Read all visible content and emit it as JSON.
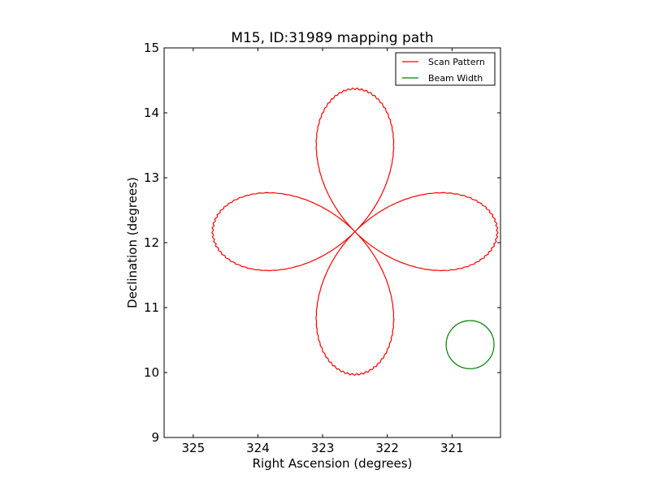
{
  "chart_data": {
    "type": "line",
    "title": "M15, ID:31989 mapping path",
    "xlabel": "Right Ascension (degrees)",
    "ylabel": "Declination (degrees)",
    "xlim": [
      325.45,
      320.25
    ],
    "ylim": [
      9,
      15
    ],
    "x_ticks": [
      325,
      324,
      323,
      322,
      321
    ],
    "y_ticks": [
      9,
      10,
      11,
      12,
      13,
      14,
      15
    ],
    "grid": false,
    "legend_position": "top-right",
    "series": [
      {
        "name": "Scan Pattern",
        "color": "#ff0000",
        "center": [
          322.5,
          12.17
        ],
        "petal_radius_x": 2.2,
        "petal_radius_y": 2.2,
        "petals": 4
      },
      {
        "name": "Beam Width",
        "color": "#008000",
        "center": [
          320.72,
          10.43
        ],
        "radius": 0.37
      }
    ]
  }
}
